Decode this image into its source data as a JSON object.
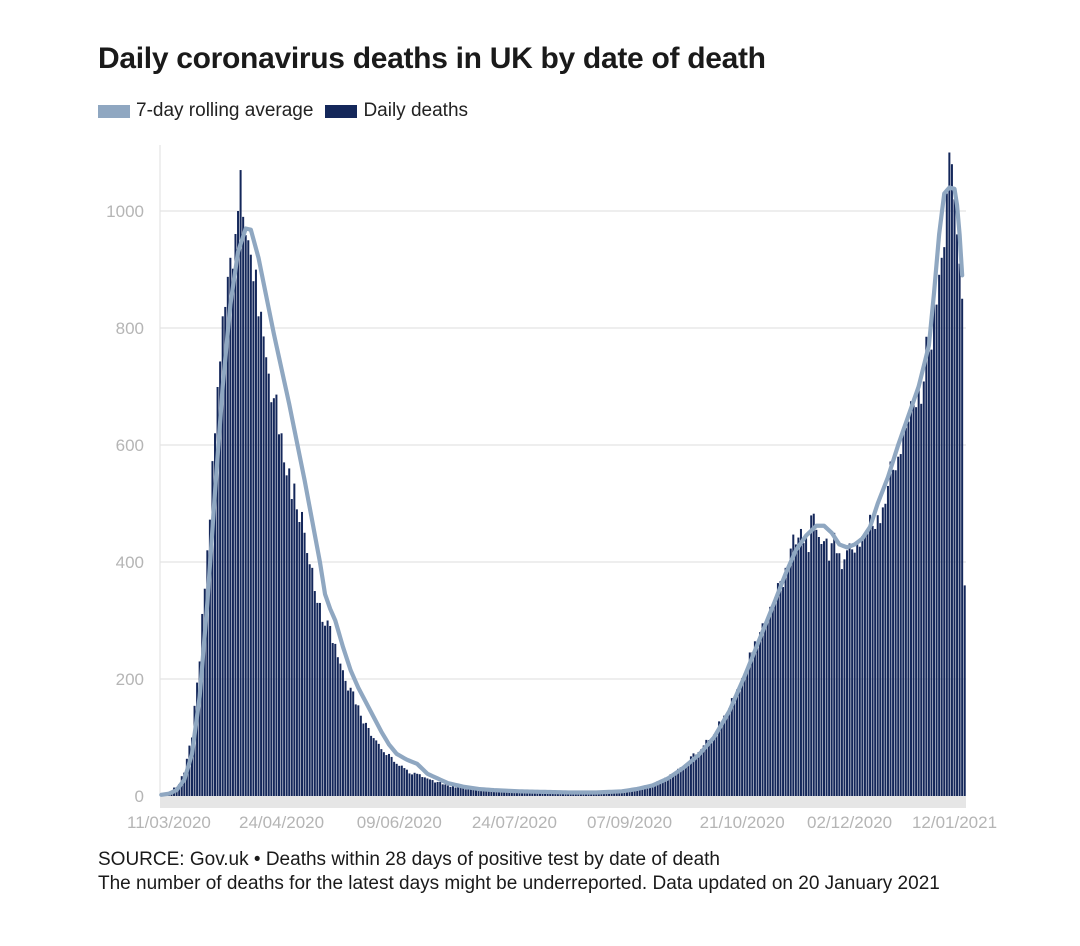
{
  "title": "Daily coronavirus deaths in UK by date of death",
  "legend": {
    "rolling": "7-day rolling average",
    "daily": "Daily deaths"
  },
  "colors": {
    "rolling": "#8fa7c1",
    "daily": "#14275a",
    "grid": "#e4e4e4",
    "axis_band": "#e6e6e6",
    "tick": "#b5b5b5"
  },
  "footer": {
    "source": "SOURCE: Gov.uk • Deaths within 28 days of positive test by date of death",
    "note": "The number of deaths for the latest days might be underreported. Data updated on 20 January 2021"
  },
  "chart_data": {
    "type": "bar",
    "title": "Daily coronavirus deaths in UK by date of death",
    "xlabel": "",
    "ylabel": "",
    "ylim": [
      0,
      1100
    ],
    "yticks": [
      0,
      200,
      400,
      600,
      800,
      1000
    ],
    "start_date": "2020-03-08",
    "end_date": "2021-01-19",
    "x_tick_labels": [
      "11/03/2020",
      "24/04/2020",
      "09/06/2020",
      "24/07/2020",
      "07/09/2020",
      "21/10/2020",
      "02/12/2020",
      "12/01/2021"
    ],
    "x_tick_day_index": [
      3,
      47,
      93,
      138,
      183,
      227,
      269,
      310
    ],
    "keypoints_daily": [
      [
        0,
        2
      ],
      [
        3,
        5
      ],
      [
        6,
        15
      ],
      [
        9,
        40
      ],
      [
        12,
        100
      ],
      [
        15,
        230
      ],
      [
        18,
        420
      ],
      [
        21,
        620
      ],
      [
        24,
        820
      ],
      [
        27,
        920
      ],
      [
        30,
        1000
      ],
      [
        31,
        1070
      ],
      [
        32,
        990
      ],
      [
        34,
        950
      ],
      [
        36,
        880
      ],
      [
        38,
        820
      ],
      [
        41,
        750
      ],
      [
        44,
        680
      ],
      [
        47,
        620
      ],
      [
        50,
        560
      ],
      [
        53,
        490
      ],
      [
        56,
        450
      ],
      [
        59,
        390
      ],
      [
        62,
        330
      ],
      [
        65,
        300
      ],
      [
        68,
        260
      ],
      [
        71,
        215
      ],
      [
        74,
        185
      ],
      [
        77,
        155
      ],
      [
        80,
        125
      ],
      [
        84,
        95
      ],
      [
        88,
        70
      ],
      [
        92,
        55
      ],
      [
        96,
        45
      ],
      [
        100,
        38
      ],
      [
        104,
        30
      ],
      [
        108,
        24
      ],
      [
        112,
        18
      ],
      [
        118,
        14
      ],
      [
        124,
        11
      ],
      [
        130,
        10
      ],
      [
        140,
        8
      ],
      [
        150,
        7
      ],
      [
        160,
        6
      ],
      [
        170,
        6
      ],
      [
        180,
        8
      ],
      [
        186,
        12
      ],
      [
        192,
        20
      ],
      [
        198,
        32
      ],
      [
        204,
        50
      ],
      [
        210,
        75
      ],
      [
        216,
        105
      ],
      [
        222,
        150
      ],
      [
        228,
        210
      ],
      [
        234,
        280
      ],
      [
        240,
        340
      ],
      [
        244,
        390
      ],
      [
        248,
        430
      ],
      [
        252,
        445
      ],
      [
        256,
        455
      ],
      [
        260,
        440
      ],
      [
        264,
        415
      ],
      [
        268,
        420
      ],
      [
        272,
        435
      ],
      [
        276,
        455
      ],
      [
        280,
        480
      ],
      [
        284,
        530
      ],
      [
        288,
        580
      ],
      [
        292,
        640
      ],
      [
        296,
        700
      ],
      [
        300,
        760
      ],
      [
        303,
        840
      ],
      [
        305,
        920
      ],
      [
        307,
        1030
      ],
      [
        308,
        1100
      ],
      [
        309,
        1080
      ],
      [
        310,
        1020
      ],
      [
        311,
        960
      ],
      [
        312,
        910
      ],
      [
        313,
        850
      ],
      [
        314,
        360
      ]
    ],
    "keypoints_avg": [
      [
        0,
        2
      ],
      [
        3,
        4
      ],
      [
        6,
        10
      ],
      [
        9,
        28
      ],
      [
        12,
        72
      ],
      [
        15,
        170
      ],
      [
        18,
        330
      ],
      [
        21,
        520
      ],
      [
        24,
        700
      ],
      [
        27,
        840
      ],
      [
        30,
        930
      ],
      [
        33,
        970
      ],
      [
        35,
        968
      ],
      [
        38,
        920
      ],
      [
        41,
        855
      ],
      [
        44,
        790
      ],
      [
        47,
        730
      ],
      [
        50,
        670
      ],
      [
        53,
        605
      ],
      [
        56,
        540
      ],
      [
        59,
        470
      ],
      [
        62,
        400
      ],
      [
        64,
        345
      ],
      [
        66,
        320
      ],
      [
        68,
        300
      ],
      [
        71,
        255
      ],
      [
        74,
        215
      ],
      [
        77,
        185
      ],
      [
        80,
        160
      ],
      [
        83,
        135
      ],
      [
        86,
        110
      ],
      [
        89,
        88
      ],
      [
        92,
        72
      ],
      [
        96,
        62
      ],
      [
        100,
        55
      ],
      [
        104,
        38
      ],
      [
        108,
        30
      ],
      [
        112,
        22
      ],
      [
        118,
        16
      ],
      [
        124,
        12
      ],
      [
        130,
        10
      ],
      [
        140,
        8
      ],
      [
        150,
        7
      ],
      [
        160,
        6
      ],
      [
        170,
        6
      ],
      [
        180,
        8
      ],
      [
        186,
        12
      ],
      [
        192,
        18
      ],
      [
        198,
        30
      ],
      [
        204,
        48
      ],
      [
        210,
        70
      ],
      [
        216,
        100
      ],
      [
        222,
        145
      ],
      [
        228,
        205
      ],
      [
        234,
        270
      ],
      [
        240,
        335
      ],
      [
        244,
        380
      ],
      [
        248,
        420
      ],
      [
        252,
        445
      ],
      [
        256,
        462
      ],
      [
        259,
        462
      ],
      [
        262,
        450
      ],
      [
        265,
        430
      ],
      [
        268,
        425
      ],
      [
        271,
        430
      ],
      [
        274,
        440
      ],
      [
        277,
        460
      ],
      [
        280,
        500
      ],
      [
        284,
        545
      ],
      [
        288,
        600
      ],
      [
        292,
        650
      ],
      [
        296,
        700
      ],
      [
        300,
        770
      ],
      [
        302,
        860
      ],
      [
        304,
        960
      ],
      [
        306,
        1030
      ],
      [
        308,
        1040
      ],
      [
        310,
        1038
      ],
      [
        311,
        1010
      ],
      [
        312,
        960
      ],
      [
        313,
        890
      ]
    ]
  }
}
